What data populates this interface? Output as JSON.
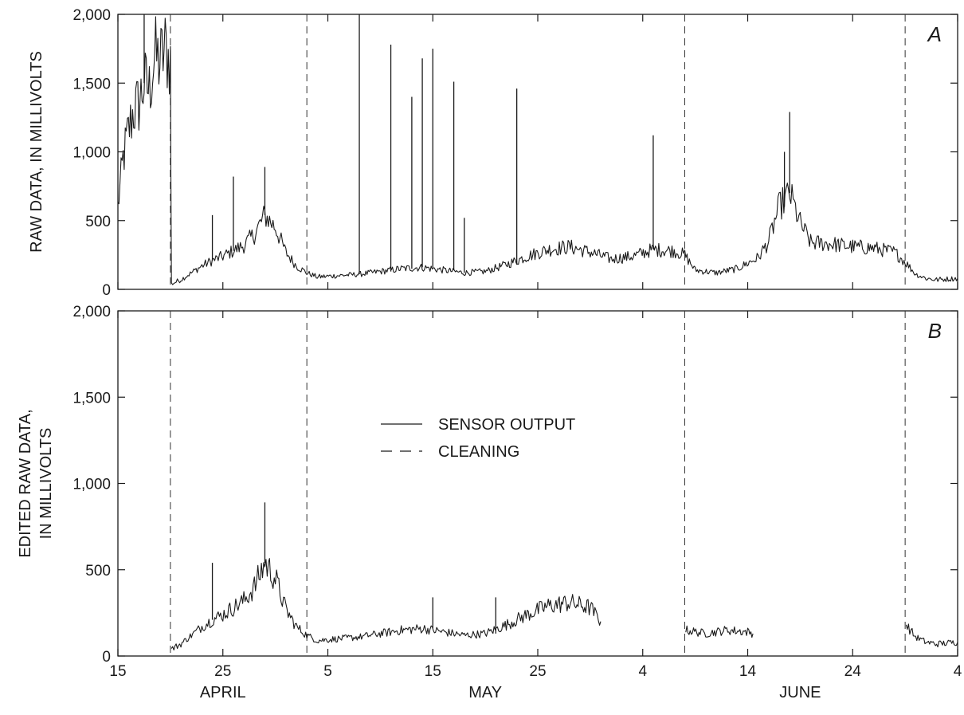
{
  "chart_data": {
    "type": "line",
    "x_axis": {
      "range": [
        "April 15",
        "July 4"
      ],
      "ticks": [
        {
          "date": "April 15",
          "label": "15"
        },
        {
          "date": "April 25",
          "label": "25"
        },
        {
          "date": "May 5",
          "label": "5"
        },
        {
          "date": "May 15",
          "label": "15"
        },
        {
          "date": "May 25",
          "label": "25"
        },
        {
          "date": "June 4",
          "label": "4"
        },
        {
          "date": "June 14",
          "label": "14"
        },
        {
          "date": "June 24",
          "label": "24"
        },
        {
          "date": "July 4",
          "label": "4"
        }
      ],
      "month_labels": [
        {
          "label": "APRIL",
          "date": "April 25"
        },
        {
          "label": "MAY",
          "date": "May 20"
        },
        {
          "label": "JUNE",
          "date": "June 19"
        }
      ]
    },
    "legend": {
      "placement": "upper-center of panel B",
      "entries": [
        {
          "label": "SENSOR OUTPUT",
          "style": "solid"
        },
        {
          "label": "CLEANING",
          "style": "dashed"
        }
      ]
    },
    "cleaning_events": [
      "April 20",
      "May 3",
      "June 8",
      "June 29"
    ],
    "panels": [
      {
        "id": "A",
        "letter": "A",
        "ylabel_lines": [
          "RAW DATA, IN MILLIVOLTS"
        ],
        "ylim": [
          0,
          2000
        ],
        "yticks": [
          {
            "value": 0,
            "label": "0"
          },
          {
            "value": 500,
            "label": "500"
          },
          {
            "value": 1000,
            "label": "1,000"
          },
          {
            "value": 1500,
            "label": "1,500"
          },
          {
            "value": 2000,
            "label": "2,000"
          }
        ],
        "series": [
          {
            "style": "solid",
            "color": "#1a1a1a",
            "note_of_values": "sensor output, millivolts by date",
            "points": [
              [
                "April 15",
                600
              ],
              [
                "April 15.5",
                950
              ],
              [
                "April 16",
                1150
              ],
              [
                "April 16.5",
                1300
              ],
              [
                "April 17",
                1350
              ],
              [
                "April 17.5",
                1500
              ],
              [
                "April 18",
                1450
              ],
              [
                "April 18.5",
                1700
              ],
              [
                "April 19",
                1650
              ],
              [
                "April 19.5",
                1750
              ],
              [
                "April 20",
                1650
              ],
              [
                "April 20.1",
                40
              ],
              [
                "April 21",
                70
              ],
              [
                "April 22",
                120
              ],
              [
                "April 23",
                170
              ],
              [
                "April 24",
                210
              ],
              [
                "April 25",
                240
              ],
              [
                "April 26",
                280
              ],
              [
                "April 27",
                320
              ],
              [
                "April 28",
                400
              ],
              [
                "April 29",
                540
              ],
              [
                "April 30",
                450
              ],
              [
                "May 1",
                270
              ],
              [
                "May 2",
                170
              ],
              [
                "May 3",
                120
              ],
              [
                "May 4",
                90
              ],
              [
                "May 6",
                100
              ],
              [
                "May 8",
                110
              ],
              [
                "May 10",
                130
              ],
              [
                "May 12",
                150
              ],
              [
                "May 14",
                160
              ],
              [
                "May 16",
                140
              ],
              [
                "May 18",
                120
              ],
              [
                "May 20",
                130
              ],
              [
                "May 22",
                180
              ],
              [
                "May 24",
                240
              ],
              [
                "May 26",
                290
              ],
              [
                "May 28",
                310
              ],
              [
                "May 30",
                270
              ],
              [
                "June 1",
                220
              ],
              [
                "June 3",
                240
              ],
              [
                "June 5",
                290
              ],
              [
                "June 7",
                280
              ],
              [
                "June 8",
                250
              ],
              [
                "June 9",
                140
              ],
              [
                "June 11",
                120
              ],
              [
                "June 13",
                150
              ],
              [
                "June 15",
                230
              ],
              [
                "June 16",
                350
              ],
              [
                "June 17",
                600
              ],
              [
                "June 18",
                700
              ],
              [
                "June 19",
                480
              ],
              [
                "June 20",
                340
              ],
              [
                "June 22",
                330
              ],
              [
                "June 24",
                310
              ],
              [
                "June 26",
                300
              ],
              [
                "June 28",
                270
              ],
              [
                "June 29",
                200
              ],
              [
                "June 30",
                110
              ],
              [
                "July 1",
                80
              ],
              [
                "July 2",
                70
              ],
              [
                "July 3",
                75
              ],
              [
                "July 4",
                80
              ]
            ],
            "spikes": [
              [
                "April 17.5",
                2000
              ],
              [
                "April 24",
                540
              ],
              [
                "April 26",
                820
              ],
              [
                "April 29",
                890
              ],
              [
                "May 8",
                2000
              ],
              [
                "May 11",
                1780
              ],
              [
                "May 13",
                1400
              ],
              [
                "May 14",
                1680
              ],
              [
                "May 15",
                1750
              ],
              [
                "May 17",
                1510
              ],
              [
                "May 18",
                520
              ],
              [
                "May 23",
                1460
              ],
              [
                "June 5",
                1120
              ],
              [
                "June 17.5",
                1000
              ],
              [
                "June 18",
                1290
              ]
            ]
          }
        ]
      },
      {
        "id": "B",
        "letter": "B",
        "ylabel_lines": [
          "EDITED RAW DATA,",
          "IN MILLIVOLTS"
        ],
        "ylim": [
          0,
          2000
        ],
        "yticks": [
          {
            "value": 0,
            "label": "0"
          },
          {
            "value": 500,
            "label": "500"
          },
          {
            "value": 1000,
            "label": "1,000"
          },
          {
            "value": 1500,
            "label": "1,500"
          },
          {
            "value": 2000,
            "label": "2,000"
          }
        ],
        "series": [
          {
            "style": "solid",
            "color": "#1a1a1a",
            "segments": [
              [
                [
                  "April 20.1",
                  40
                ],
                [
                  "April 21",
                  70
                ],
                [
                  "April 22",
                  120
                ],
                [
                  "April 23",
                  170
                ],
                [
                  "April 24",
                  210
                ],
                [
                  "April 25",
                  240
                ],
                [
                  "April 26",
                  280
                ],
                [
                  "April 27",
                  320
                ],
                [
                  "April 28",
                  400
                ],
                [
                  "April 29",
                  540
                ],
                [
                  "April 30",
                  450
                ],
                [
                  "May 1",
                  270
                ],
                [
                  "May 2",
                  170
                ],
                [
                  "May 3",
                  120
                ],
                [
                  "May 4",
                  90
                ],
                [
                  "May 6",
                  100
                ],
                [
                  "May 8",
                  110
                ],
                [
                  "May 10",
                  130
                ],
                [
                  "May 12",
                  150
                ],
                [
                  "May 14",
                  160
                ],
                [
                  "May 16",
                  140
                ],
                [
                  "May 18",
                  120
                ],
                [
                  "May 20",
                  130
                ],
                [
                  "May 22",
                  180
                ],
                [
                  "May 24",
                  240
                ],
                [
                  "May 26",
                  290
                ],
                [
                  "May 28",
                  310
                ],
                [
                  "May 30",
                  280
                ],
                [
                  "May 31",
                  200
                ]
              ],
              [
                [
                  "June 8.1",
                  150
                ],
                [
                  "June 10",
                  130
                ],
                [
                  "June 12",
                  150
                ],
                [
                  "June 14",
                  140
                ],
                [
                  "June 14.5",
                  130
                ]
              ],
              [
                [
                  "June 29.1",
                  180
                ],
                [
                  "June 30",
                  110
                ],
                [
                  "July 1",
                  80
                ],
                [
                  "July 2",
                  70
                ],
                [
                  "July 3",
                  75
                ],
                [
                  "July 4",
                  80
                ]
              ]
            ],
            "spikes": [
              [
                "April 24",
                540
              ],
              [
                "April 29",
                890
              ],
              [
                "May 15",
                340
              ],
              [
                "May 21",
                340
              ]
            ]
          }
        ]
      }
    ]
  }
}
